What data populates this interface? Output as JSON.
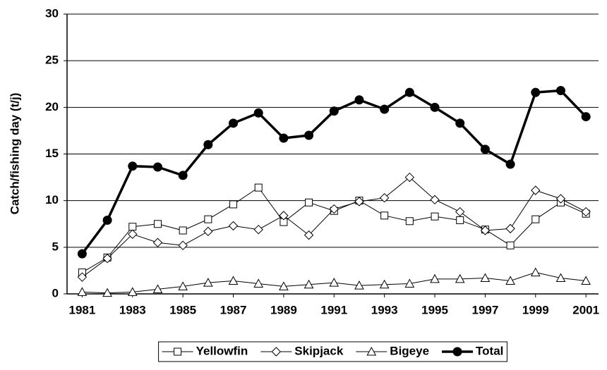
{
  "chart_data": {
    "type": "line",
    "y_label": "Catch/fishing day (t/j)",
    "x": [
      1981,
      1982,
      1983,
      1984,
      1985,
      1986,
      1987,
      1988,
      1989,
      1990,
      1991,
      1992,
      1993,
      1994,
      1995,
      1996,
      1997,
      1998,
      1999,
      2000,
      2001
    ],
    "xlim": [
      1980.4,
      2001.5
    ],
    "xticks": [
      1981,
      1983,
      1985,
      1987,
      1989,
      1991,
      1993,
      1995,
      1997,
      1999,
      2001
    ],
    "ylim": [
      0,
      30
    ],
    "yticks": [
      0,
      5,
      10,
      15,
      20,
      25,
      30
    ],
    "grid": true,
    "legend": "bottom",
    "series": [
      {
        "name": "Yellowfin",
        "color": "#000000",
        "marker": "square",
        "values": [
          2.3,
          3.9,
          7.2,
          7.5,
          6.8,
          8.0,
          9.6,
          11.4,
          7.7,
          9.8,
          8.9,
          10.0,
          8.4,
          7.8,
          8.3,
          7.9,
          6.9,
          5.2,
          8.0,
          9.8,
          8.6
        ]
      },
      {
        "name": "Skipjack",
        "color": "#000000",
        "marker": "diamond",
        "values": [
          1.8,
          3.8,
          6.4,
          5.5,
          5.2,
          6.7,
          7.3,
          6.9,
          8.4,
          6.3,
          9.1,
          9.9,
          10.3,
          12.5,
          10.1,
          8.8,
          6.8,
          7.0,
          11.1,
          10.2,
          8.8
        ]
      },
      {
        "name": "Bigeye",
        "color": "#000000",
        "marker": "triangle",
        "values": [
          0.2,
          0.1,
          0.2,
          0.5,
          0.8,
          1.2,
          1.4,
          1.1,
          0.8,
          1.0,
          1.2,
          0.9,
          1.0,
          1.1,
          1.6,
          1.6,
          1.7,
          1.4,
          2.3,
          1.7,
          1.4
        ]
      },
      {
        "name": "Total",
        "color": "#000000",
        "marker": "circle",
        "values": [
          4.3,
          7.9,
          13.7,
          13.6,
          12.7,
          16.0,
          18.3,
          19.4,
          16.7,
          17.0,
          19.6,
          20.8,
          19.8,
          21.6,
          20.0,
          18.3,
          15.5,
          13.9,
          21.6,
          21.8,
          19.0
        ]
      }
    ]
  }
}
